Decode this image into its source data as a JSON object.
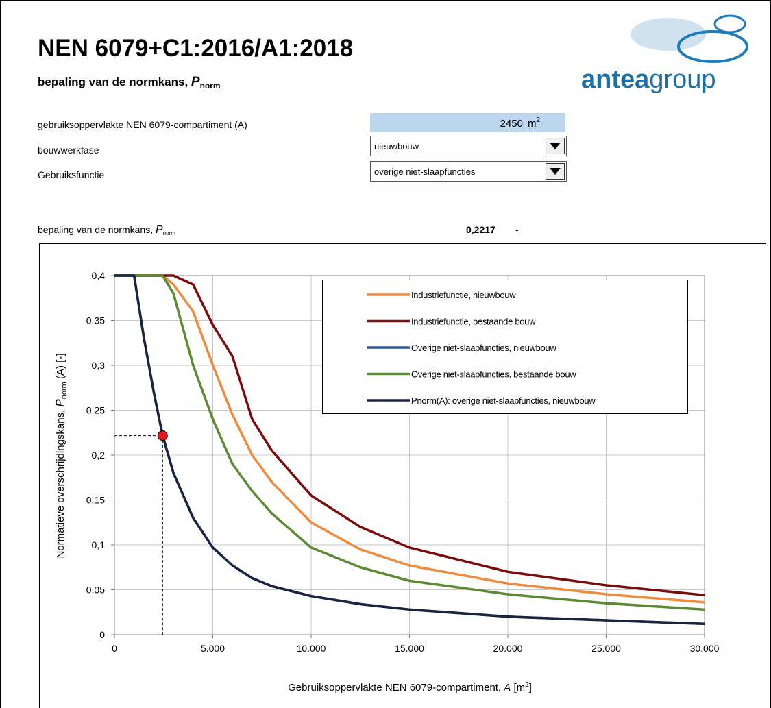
{
  "header": {
    "title": "NEN 6079+C1:2016/A1:2018",
    "subtitle": {
      "text": "bepaling van de normkans, ",
      "symbol": "P",
      "subscript": "norm"
    },
    "logo": {
      "part1": "antea",
      "part2": "group"
    }
  },
  "form": {
    "area": {
      "label": "gebruiksoppervlakte NEN 6079-compartiment (A)",
      "value": 2450,
      "unit": "m",
      "unit_sup": "2"
    },
    "phase": {
      "label": "bouwwerkfase",
      "value": "nieuwbouw"
    },
    "function": {
      "label": "Gebruiksfunctie",
      "value": "overige niet-slaapfuncties"
    }
  },
  "result": {
    "text": "bepaling van de normkans, ",
    "symbol": "P",
    "subscript": "norm",
    "value": {
      "value": 0.2217,
      "label": "0,2217"
    },
    "unit": "-"
  },
  "chart_data": {
    "type": "line",
    "x_label": {
      "text": "Gebruiksoppervlakte NEN 6079-compartiment, ",
      "symbol": "A",
      "unit_open": " [m",
      "unit_sup": "2",
      "unit_close": "]"
    },
    "y_label": {
      "text": "Normatieve overschrijdingskans,  ",
      "symbol": "P",
      "subscript": "norm",
      "rest": " (A) [-]"
    },
    "x": [
      0,
      1000,
      1500,
      2000,
      2450,
      3000,
      4000,
      5000,
      6000,
      7000,
      8000,
      10000,
      12500,
      15000,
      20000,
      25000,
      30000
    ],
    "series": [
      {
        "name": "Industriefunctie, nieuwbouw",
        "color": "#f08a3c",
        "values": [
          0.4,
          0.4,
          0.4,
          0.4,
          0.4,
          0.39,
          0.36,
          0.3,
          0.245,
          0.2,
          0.17,
          0.125,
          0.095,
          0.077,
          0.057,
          0.045,
          0.036
        ]
      },
      {
        "name": "Industriefunctie, bestaande bouw",
        "color": "#7b0a0a",
        "values": [
          0.4,
          0.4,
          0.4,
          0.4,
          0.4,
          0.4,
          0.39,
          0.345,
          0.31,
          0.24,
          0.205,
          0.155,
          0.12,
          0.097,
          0.07,
          0.055,
          0.044
        ]
      },
      {
        "name": "Overige niet-slaapfuncties, nieuwbouw",
        "color": "#2f5597",
        "values": [
          0.4,
          0.4,
          0.33,
          0.27,
          0.2217,
          0.18,
          0.13,
          0.097,
          0.077,
          0.063,
          0.054,
          0.043,
          0.034,
          0.028,
          0.02,
          0.016,
          0.012
        ]
      },
      {
        "name": "Overige niet-slaapfuncties, bestaande bouw",
        "color": "#5a8a32",
        "values": [
          0.4,
          0.4,
          0.4,
          0.4,
          0.4,
          0.38,
          0.3,
          0.24,
          0.19,
          0.16,
          0.135,
          0.097,
          0.075,
          0.06,
          0.045,
          0.035,
          0.028
        ]
      },
      {
        "name": "Pnorm(A): overige niet-slaapfuncties, nieuwbouw",
        "color": "#1a2440",
        "values": [
          0.4,
          0.4,
          0.33,
          0.27,
          0.2217,
          0.18,
          0.13,
          0.097,
          0.077,
          0.063,
          0.054,
          0.043,
          0.034,
          0.028,
          0.02,
          0.016,
          0.012
        ]
      }
    ],
    "marker_color": "#e8141b",
    "xlim": [
      0,
      30000
    ],
    "ylim": [
      0,
      0.4
    ],
    "xticks": [
      0,
      {
        "value": 5000,
        "label": "5.000"
      },
      {
        "value": 10000,
        "label": "10.000"
      },
      {
        "value": 15000,
        "label": "15.000"
      },
      {
        "value": 20000,
        "label": "20.000"
      },
      {
        "value": 25000,
        "label": "25.000"
      },
      {
        "value": 30000,
        "label": "30.000"
      }
    ],
    "yticks": [
      0,
      {
        "value": 0.05,
        "label": "0,05"
      },
      {
        "value": 0.1,
        "label": "0,1"
      },
      {
        "value": 0.15,
        "label": "0,15"
      },
      {
        "value": 0.2,
        "label": "0,2"
      },
      {
        "value": 0.25,
        "label": "0,25"
      },
      {
        "value": 0.3,
        "label": "0,3"
      },
      {
        "value": 0.35,
        "label": "0,35"
      },
      {
        "value": 0.4,
        "label": "0,4"
      }
    ],
    "grid": true,
    "legend": "top-right"
  }
}
